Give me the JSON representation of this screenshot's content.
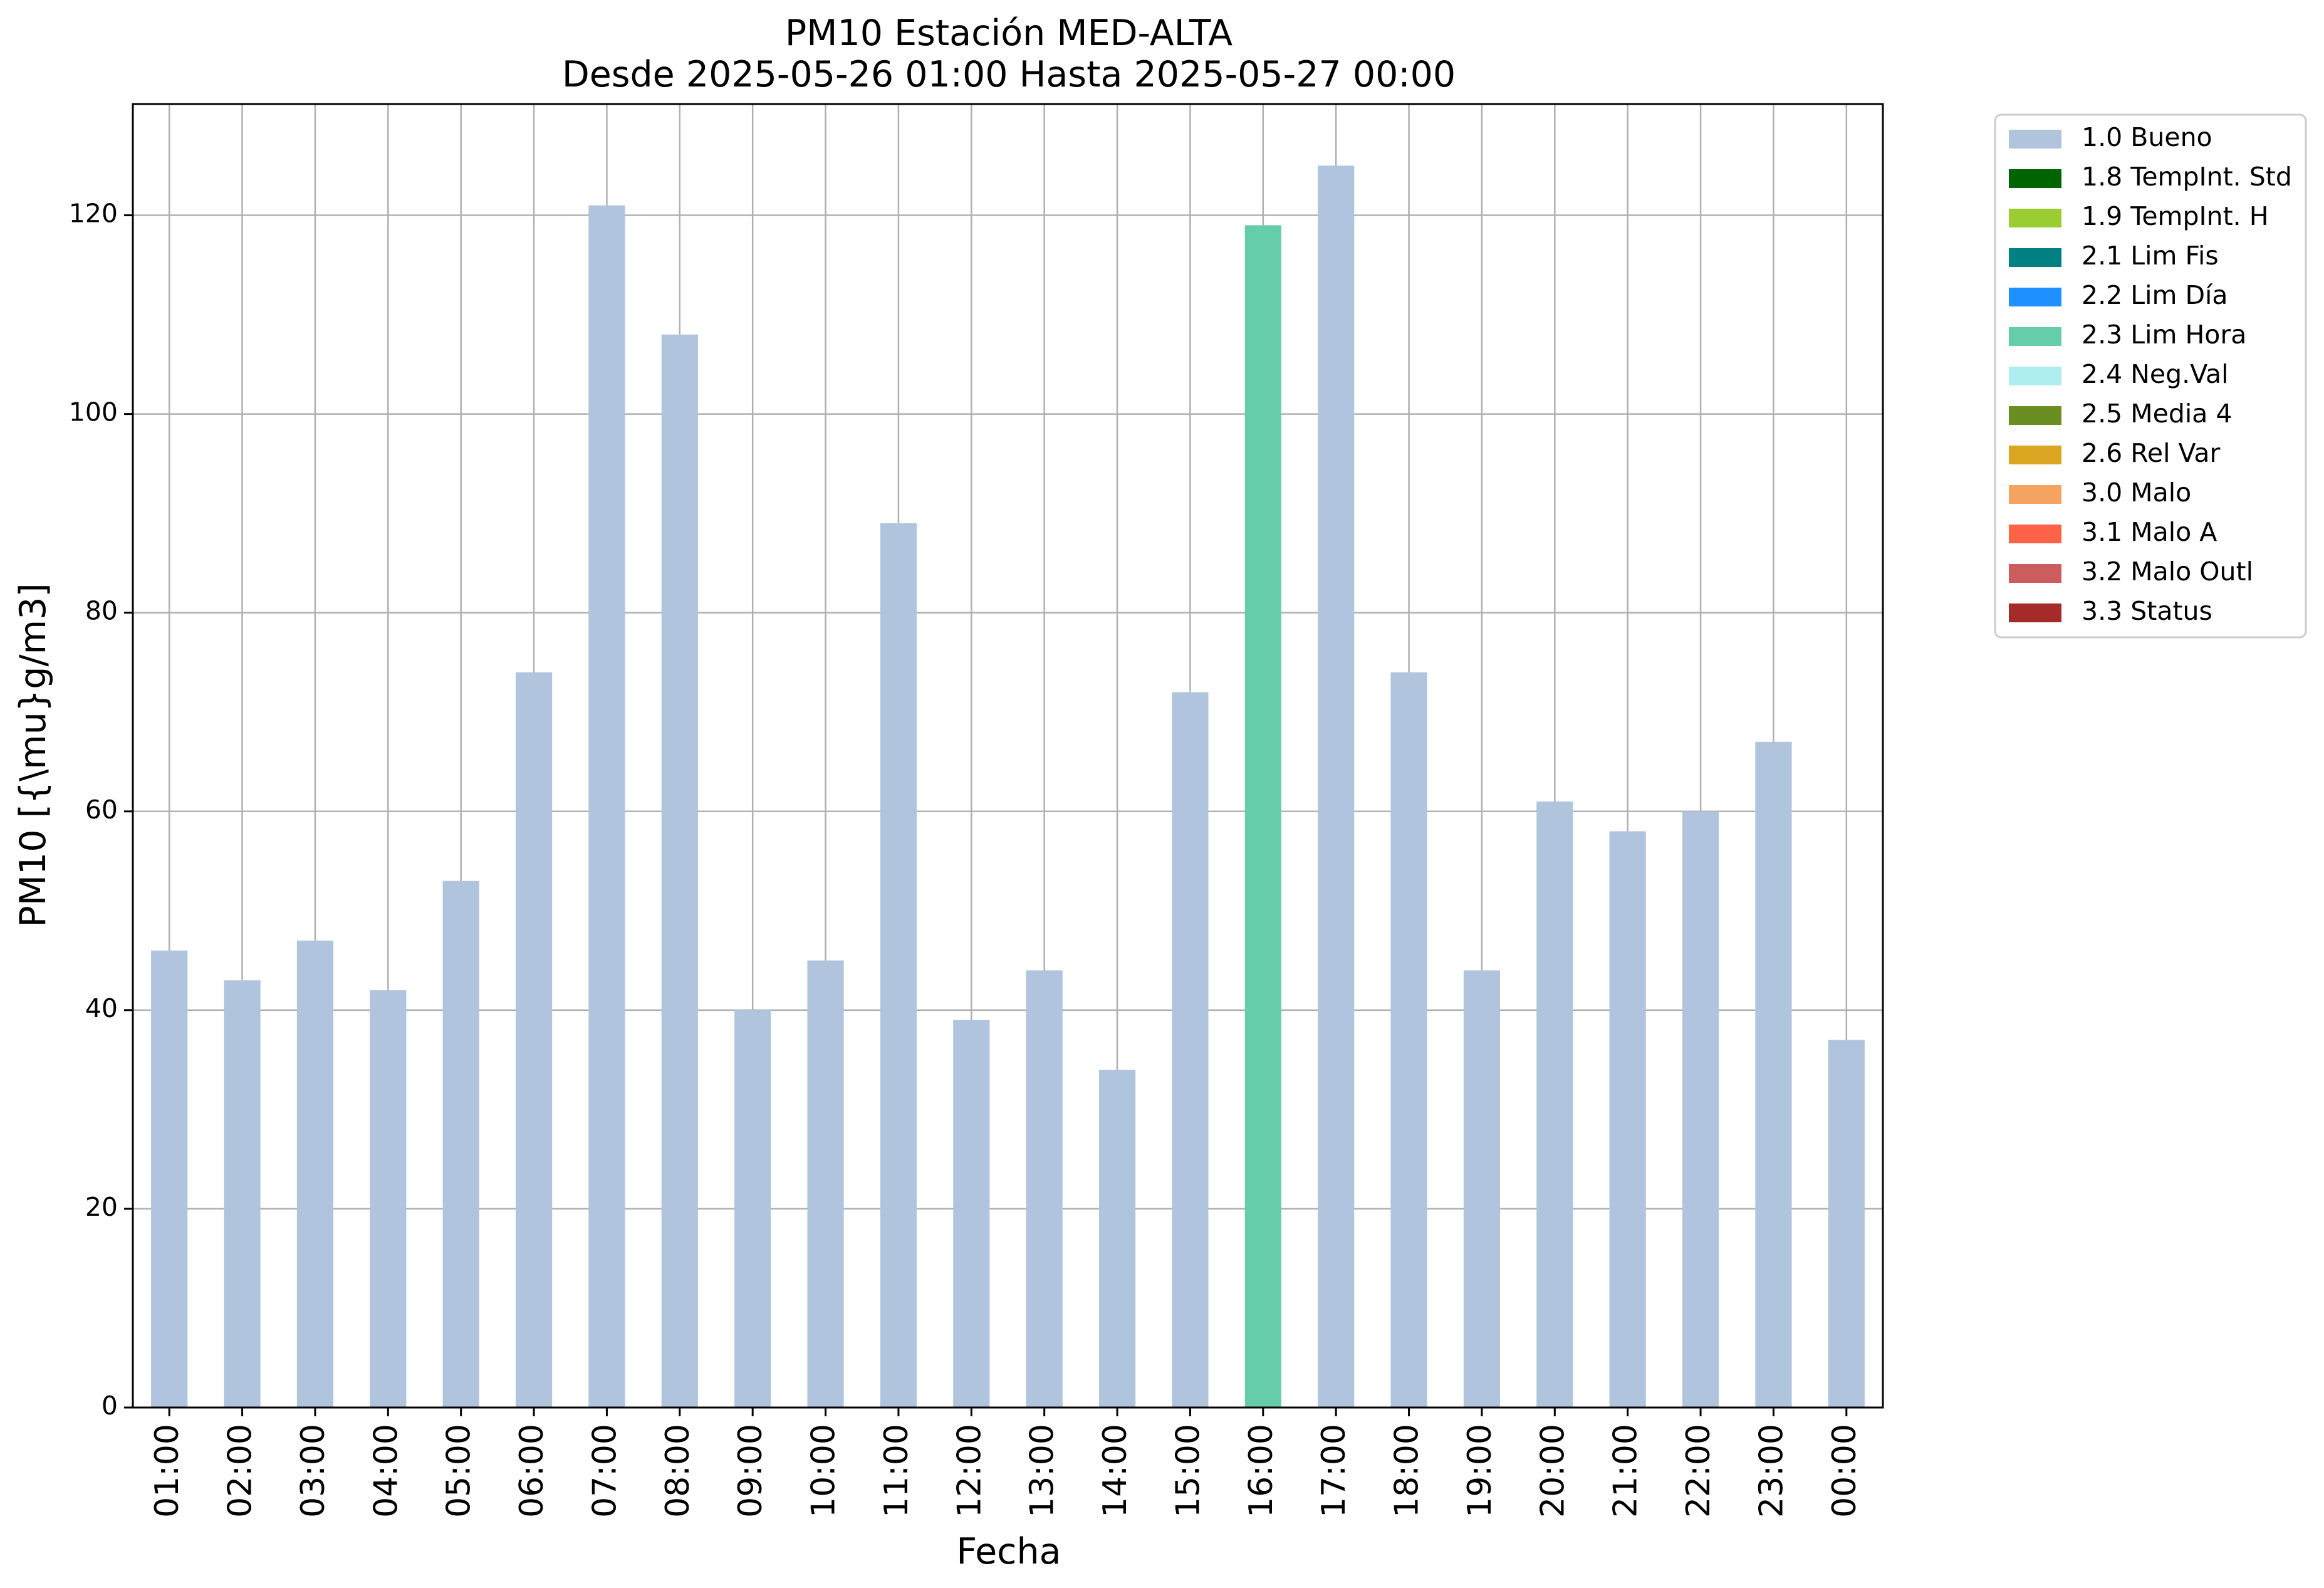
{
  "chart_data": {
    "type": "bar",
    "title": "PM10 Estación MED-ALTA",
    "subtitle": "Desde 2025-05-26 01:00 Hasta 2025-05-27 00:00",
    "xlabel": "Fecha",
    "ylabel": "PM10 [{\\mu}g/m3]",
    "ylim": [
      0,
      131.2
    ],
    "yticks": [
      0,
      20,
      40,
      60,
      80,
      100,
      120
    ],
    "grid": true,
    "legend_position": "outside-right",
    "categories": [
      "01:00",
      "02:00",
      "03:00",
      "04:00",
      "05:00",
      "06:00",
      "07:00",
      "08:00",
      "09:00",
      "10:00",
      "11:00",
      "12:00",
      "13:00",
      "14:00",
      "15:00",
      "16:00",
      "17:00",
      "18:00",
      "19:00",
      "20:00",
      "21:00",
      "22:00",
      "23:00",
      "00:00"
    ],
    "values": [
      46,
      43,
      47,
      42,
      53,
      74,
      121,
      108,
      40,
      45,
      89,
      39,
      44,
      34,
      72,
      119,
      125,
      74,
      44,
      61,
      58,
      60,
      67,
      37
    ],
    "flags": [
      "1.0 Bueno",
      "1.0 Bueno",
      "1.0 Bueno",
      "1.0 Bueno",
      "1.0 Bueno",
      "1.0 Bueno",
      "1.0 Bueno",
      "1.0 Bueno",
      "1.0 Bueno",
      "1.0 Bueno",
      "1.0 Bueno",
      "1.0 Bueno",
      "1.0 Bueno",
      "1.0 Bueno",
      "1.0 Bueno",
      "2.3 Lim Hora",
      "1.0 Bueno",
      "1.0 Bueno",
      "1.0 Bueno",
      "1.0 Bueno",
      "1.0 Bueno",
      "1.0 Bueno",
      "1.0 Bueno",
      "1.0 Bueno"
    ],
    "legend": [
      {
        "label": "1.0 Bueno",
        "color": "#b0c4de"
      },
      {
        "label": "1.8 TempInt. Std",
        "color": "#006400"
      },
      {
        "label": "1.9 TempInt. H",
        "color": "#9acd32"
      },
      {
        "label": "2.1 Lim Fis",
        "color": "#008080"
      },
      {
        "label": "2.2 Lim Día",
        "color": "#1e90ff"
      },
      {
        "label": "2.3 Lim Hora",
        "color": "#66cdaa"
      },
      {
        "label": "2.4 Neg.Val",
        "color": "#afeeee"
      },
      {
        "label": "2.5 Media 4",
        "color": "#6b8e23"
      },
      {
        "label": "2.6 Rel Var",
        "color": "#daa520"
      },
      {
        "label": "3.0 Malo",
        "color": "#f4a460"
      },
      {
        "label": "3.1 Malo A",
        "color": "#ff6347"
      },
      {
        "label": "3.2 Malo Outl",
        "color": "#cd5c5c"
      },
      {
        "label": "3.3 Status",
        "color": "#a52a2a"
      }
    ]
  }
}
